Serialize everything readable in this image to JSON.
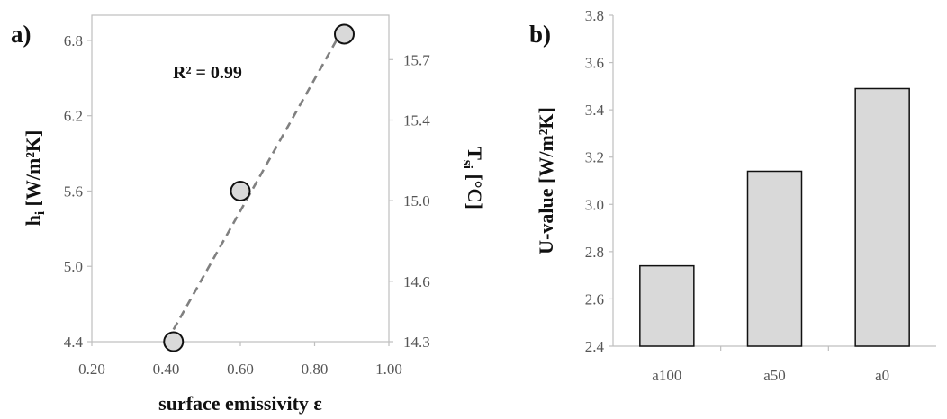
{
  "chart_data": [
    {
      "type": "scatter",
      "panel_label": "a)",
      "xlabel": "surface emissivity ε",
      "ylabel_main": "h",
      "ylabel_sub": "i",
      "ylabel_rest": " [W/m²K]",
      "y2label_main": "T",
      "y2label_sub": "si",
      "y2label_rest": " [°C]",
      "xlim": [
        0.2,
        1.0
      ],
      "ylim": [
        4.4,
        7.0
      ],
      "y2lim": [
        14.3,
        15.92
      ],
      "x_ticks": [
        "0.20",
        "0.40",
        "0.60",
        "0.80",
        "1.00"
      ],
      "y_ticks": [
        "4.4",
        "5.0",
        "5.6",
        "6.2",
        "6.8"
      ],
      "y2_ticks": [
        "14.3",
        "14.6",
        "15.0",
        "15.4",
        "15.7"
      ],
      "annotation": "R² = 0.99",
      "trendline": "linear",
      "points": [
        {
          "x": 0.42,
          "y": 4.4
        },
        {
          "x": 0.6,
          "y": 5.6
        },
        {
          "x": 0.88,
          "y": 6.85
        }
      ],
      "marker_fill": "#d9d9d9",
      "trend_color": "#808080"
    },
    {
      "type": "bar",
      "panel_label": "b)",
      "ylabel": "U-value [W/m²K]",
      "categories": [
        "a100",
        "a50",
        "a0"
      ],
      "values": [
        2.74,
        3.14,
        3.49
      ],
      "ylim": [
        2.4,
        3.8
      ],
      "y_ticks": [
        "2.4",
        "2.6",
        "2.8",
        "3.0",
        "3.2",
        "3.4",
        "3.6",
        "3.8"
      ],
      "bar_fill": "#d9d9d9"
    }
  ]
}
